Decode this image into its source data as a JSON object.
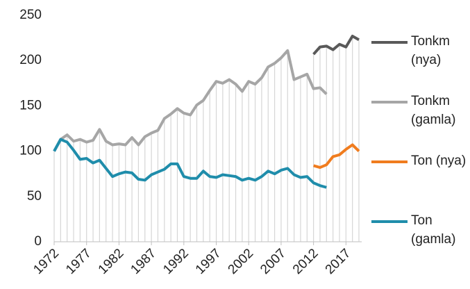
{
  "chart_data": {
    "type": "line",
    "x": [
      1972,
      1973,
      1974,
      1975,
      1976,
      1977,
      1978,
      1979,
      1980,
      1981,
      1982,
      1983,
      1984,
      1985,
      1986,
      1987,
      1988,
      1989,
      1990,
      1991,
      1992,
      1993,
      1994,
      1995,
      1996,
      1997,
      1998,
      1999,
      2000,
      2001,
      2002,
      2003,
      2004,
      2005,
      2006,
      2007,
      2008,
      2009,
      2010,
      2011,
      2012,
      2013,
      2014,
      2015,
      2016,
      2017,
      2018,
      2019
    ],
    "series": [
      {
        "name": "Tonkm (nya)",
        "color": "#595959",
        "values": [
          null,
          null,
          null,
          null,
          null,
          null,
          null,
          null,
          null,
          null,
          null,
          null,
          null,
          null,
          null,
          null,
          null,
          null,
          null,
          null,
          null,
          null,
          null,
          null,
          null,
          null,
          null,
          null,
          null,
          null,
          null,
          null,
          null,
          null,
          null,
          null,
          null,
          null,
          null,
          null,
          207,
          215,
          216,
          212,
          218,
          215,
          227,
          223
        ]
      },
      {
        "name": "Tonkm (gamla)",
        "color": "#a6a6a6",
        "values": [
          100,
          113,
          118,
          111,
          113,
          110,
          112,
          124,
          111,
          107,
          108,
          107,
          115,
          107,
          116,
          120,
          123,
          136,
          141,
          147,
          142,
          140,
          151,
          156,
          167,
          177,
          175,
          179,
          174,
          166,
          177,
          174,
          181,
          193,
          197,
          203,
          211,
          179,
          182,
          185,
          169,
          170,
          163,
          null,
          null,
          null,
          null,
          null
        ]
      },
      {
        "name": "Ton (nya)",
        "color": "#f07c1e",
        "values": [
          null,
          null,
          null,
          null,
          null,
          null,
          null,
          null,
          null,
          null,
          null,
          null,
          null,
          null,
          null,
          null,
          null,
          null,
          null,
          null,
          null,
          null,
          null,
          null,
          null,
          null,
          null,
          null,
          null,
          null,
          null,
          null,
          null,
          null,
          null,
          null,
          null,
          null,
          null,
          null,
          84,
          82,
          85,
          94,
          96,
          102,
          107,
          100
        ]
      },
      {
        "name": "Ton (gamla)",
        "color": "#1f8dab",
        "values": [
          100,
          113,
          110,
          101,
          91,
          92,
          87,
          90,
          81,
          72,
          75,
          77,
          76,
          69,
          68,
          74,
          77,
          80,
          86,
          86,
          72,
          70,
          70,
          78,
          72,
          71,
          74,
          73,
          72,
          68,
          70,
          68,
          72,
          78,
          75,
          79,
          81,
          74,
          71,
          72,
          65,
          62,
          60,
          null,
          null,
          null,
          null,
          null
        ]
      }
    ],
    "xlim": [
      1972,
      2019
    ],
    "xticks": [
      1972,
      1977,
      1982,
      1987,
      1992,
      1997,
      2002,
      2007,
      2012,
      2017
    ],
    "ylim": [
      0,
      250
    ],
    "yticks": [
      0,
      50,
      100,
      150,
      200,
      250
    ],
    "legend": "right"
  }
}
